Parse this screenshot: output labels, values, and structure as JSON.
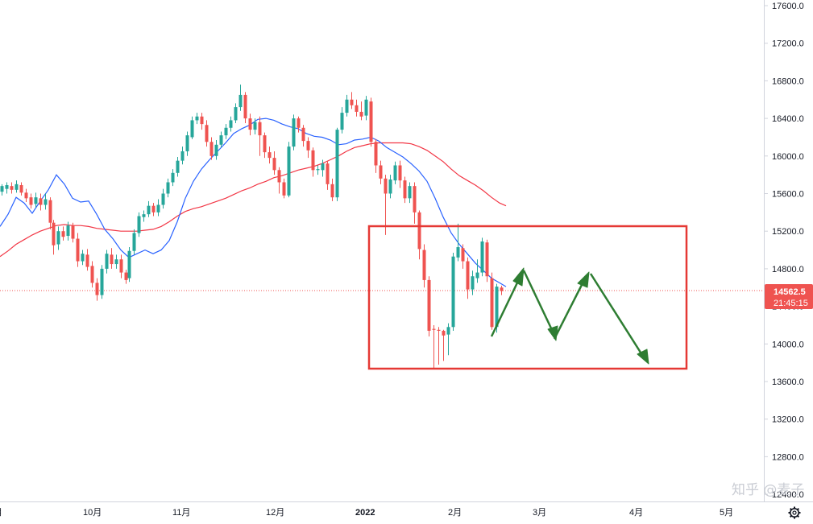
{
  "chart_data": {
    "type": "candlestick",
    "y_axis": {
      "position": "right",
      "range": [
        12240,
        17640
      ],
      "ticks": [
        "17600.0",
        "17200.0",
        "16800.0",
        "16400.0",
        "16000.0",
        "15600.0",
        "15200.0",
        "14800.0",
        "14400.0",
        "14000.0",
        "13600.0",
        "13200.0",
        "12800.0",
        "12400.0"
      ]
    },
    "x_axis": {
      "ticks": [
        {
          "label": "月",
          "bold": false
        },
        {
          "label": "10月",
          "bold": false
        },
        {
          "label": "11月",
          "bold": false
        },
        {
          "label": "12月",
          "bold": false
        },
        {
          "label": "2022",
          "bold": true
        },
        {
          "label": "2月",
          "bold": false
        },
        {
          "label": "3月",
          "bold": false
        },
        {
          "label": "4月",
          "bold": false
        },
        {
          "label": "5月",
          "bold": false
        }
      ]
    },
    "last_price": {
      "value": 14562.5,
      "label": "14562.5",
      "countdown": "21:45:15"
    },
    "colors": {
      "up": "#26a69a",
      "down": "#ef5350",
      "ma_fast": "#2962ff",
      "ma_slow": "#f23645",
      "box": "#e53935",
      "arrow": "#2e7d32"
    },
    "ma_fast": [
      [
        0,
        15250
      ],
      [
        10,
        15380
      ],
      [
        20,
        15560
      ],
      [
        30,
        15500
      ],
      [
        40,
        15390
      ],
      [
        50,
        15520
      ],
      [
        60,
        15640
      ],
      [
        70,
        15800
      ],
      [
        80,
        15700
      ],
      [
        90,
        15550
      ],
      [
        100,
        15510
      ],
      [
        110,
        15520
      ],
      [
        120,
        15380
      ],
      [
        130,
        15220
      ],
      [
        140,
        15120
      ],
      [
        150,
        15000
      ],
      [
        160,
        14920
      ],
      [
        170,
        14960
      ],
      [
        180,
        15000
      ],
      [
        190,
        14960
      ],
      [
        200,
        15000
      ],
      [
        210,
        15100
      ],
      [
        220,
        15300
      ],
      [
        230,
        15550
      ],
      [
        240,
        15730
      ],
      [
        250,
        15860
      ],
      [
        260,
        15960
      ],
      [
        270,
        16050
      ],
      [
        280,
        16140
      ],
      [
        290,
        16240
      ],
      [
        300,
        16290
      ],
      [
        310,
        16330
      ],
      [
        320,
        16390
      ],
      [
        330,
        16400
      ],
      [
        340,
        16380
      ],
      [
        350,
        16340
      ],
      [
        360,
        16310
      ],
      [
        370,
        16290
      ],
      [
        380,
        16240
      ],
      [
        390,
        16210
      ],
      [
        400,
        16200
      ],
      [
        410,
        16170
      ],
      [
        420,
        16120
      ],
      [
        430,
        16130
      ],
      [
        440,
        16170
      ],
      [
        450,
        16180
      ],
      [
        460,
        16200
      ],
      [
        470,
        16160
      ],
      [
        480,
        16090
      ],
      [
        490,
        16040
      ],
      [
        500,
        15990
      ],
      [
        510,
        15920
      ],
      [
        520,
        15840
      ],
      [
        530,
        15730
      ],
      [
        540,
        15550
      ],
      [
        550,
        15350
      ],
      [
        560,
        15180
      ],
      [
        570,
        15060
      ],
      [
        580,
        14960
      ],
      [
        590,
        14860
      ],
      [
        600,
        14780
      ],
      [
        610,
        14700
      ],
      [
        620,
        14650
      ],
      [
        628,
        14610
      ]
    ],
    "ma_slow": [
      [
        0,
        14930
      ],
      [
        10,
        14990
      ],
      [
        20,
        15060
      ],
      [
        30,
        15110
      ],
      [
        40,
        15160
      ],
      [
        50,
        15200
      ],
      [
        60,
        15230
      ],
      [
        70,
        15260
      ],
      [
        80,
        15270
      ],
      [
        90,
        15260
      ],
      [
        100,
        15260
      ],
      [
        110,
        15250
      ],
      [
        120,
        15230
      ],
      [
        130,
        15220
      ],
      [
        140,
        15210
      ],
      [
        150,
        15200
      ],
      [
        160,
        15200
      ],
      [
        170,
        15200
      ],
      [
        180,
        15210
      ],
      [
        190,
        15220
      ],
      [
        200,
        15250
      ],
      [
        210,
        15300
      ],
      [
        220,
        15360
      ],
      [
        230,
        15410
      ],
      [
        240,
        15440
      ],
      [
        250,
        15460
      ],
      [
        260,
        15490
      ],
      [
        270,
        15520
      ],
      [
        280,
        15550
      ],
      [
        290,
        15590
      ],
      [
        300,
        15630
      ],
      [
        310,
        15660
      ],
      [
        320,
        15700
      ],
      [
        330,
        15730
      ],
      [
        340,
        15770
      ],
      [
        350,
        15790
      ],
      [
        360,
        15820
      ],
      [
        370,
        15850
      ],
      [
        380,
        15870
      ],
      [
        390,
        15890
      ],
      [
        400,
        15920
      ],
      [
        410,
        15960
      ],
      [
        420,
        16000
      ],
      [
        430,
        16050
      ],
      [
        440,
        16090
      ],
      [
        450,
        16110
      ],
      [
        460,
        16130
      ],
      [
        470,
        16140
      ],
      [
        480,
        16140
      ],
      [
        490,
        16140
      ],
      [
        500,
        16140
      ],
      [
        510,
        16130
      ],
      [
        520,
        16100
      ],
      [
        530,
        16060
      ],
      [
        540,
        16000
      ],
      [
        550,
        15940
      ],
      [
        560,
        15860
      ],
      [
        570,
        15790
      ],
      [
        580,
        15740
      ],
      [
        590,
        15690
      ],
      [
        600,
        15630
      ],
      [
        610,
        15560
      ],
      [
        620,
        15500
      ],
      [
        628,
        15470
      ]
    ],
    "candles": [
      [
        2,
        15620,
        15680,
        15580,
        15700
      ],
      [
        8,
        15650,
        15690,
        15600,
        15720
      ],
      [
        14,
        15680,
        15640,
        15600,
        15720
      ],
      [
        20,
        15640,
        15700,
        15610,
        15740
      ],
      [
        26,
        15690,
        15610,
        15580,
        15720
      ],
      [
        32,
        15610,
        15550,
        15510,
        15650
      ],
      [
        38,
        15560,
        15480,
        15440,
        15600
      ],
      [
        44,
        15490,
        15560,
        15450,
        15610
      ],
      [
        50,
        15550,
        15480,
        15420,
        15600
      ],
      [
        56,
        15480,
        15540,
        15430,
        15600
      ],
      [
        62,
        15530,
        15290,
        15220,
        15560
      ],
      [
        66,
        15290,
        15050,
        14950,
        15320
      ],
      [
        72,
        15060,
        15200,
        15000,
        15250
      ],
      [
        78,
        15200,
        15140,
        15100,
        15250
      ],
      [
        84,
        15150,
        15260,
        15100,
        15300
      ],
      [
        90,
        15260,
        15120,
        15080,
        15290
      ],
      [
        96,
        15120,
        14880,
        14820,
        15180
      ],
      [
        102,
        14880,
        14960,
        14840,
        15000
      ],
      [
        108,
        14950,
        14820,
        14780,
        15010
      ],
      [
        114,
        14830,
        14650,
        14600,
        14880
      ],
      [
        120,
        14650,
        14520,
        14460,
        14700
      ],
      [
        126,
        14520,
        14800,
        14480,
        14840
      ],
      [
        132,
        14800,
        14960,
        14750,
        15000
      ],
      [
        138,
        14950,
        14850,
        14800,
        15020
      ],
      [
        144,
        14850,
        14900,
        14800,
        14950
      ],
      [
        150,
        14900,
        14760,
        14700,
        14950
      ],
      [
        156,
        14760,
        14680,
        14640,
        14790
      ],
      [
        160,
        14700,
        14990,
        14660,
        15030
      ],
      [
        166,
        14990,
        15180,
        14950,
        15220
      ],
      [
        172,
        15180,
        15360,
        15140,
        15400
      ],
      [
        178,
        15350,
        15380,
        15300,
        15420
      ],
      [
        184,
        15380,
        15470,
        15350,
        15520
      ],
      [
        190,
        15470,
        15400,
        15360,
        15500
      ],
      [
        196,
        15400,
        15480,
        15360,
        15540
      ],
      [
        202,
        15480,
        15600,
        15440,
        15650
      ],
      [
        208,
        15600,
        15720,
        15560,
        15760
      ],
      [
        214,
        15720,
        15820,
        15680,
        15860
      ],
      [
        220,
        15820,
        15950,
        15780,
        15990
      ],
      [
        226,
        15950,
        16050,
        15910,
        16100
      ],
      [
        232,
        16050,
        16220,
        16000,
        16260
      ],
      [
        238,
        16200,
        16380,
        16180,
        16420
      ],
      [
        244,
        16380,
        16420,
        16340,
        16460
      ],
      [
        250,
        16420,
        16340,
        16280,
        16460
      ],
      [
        256,
        16330,
        16150,
        16100,
        16380
      ],
      [
        262,
        16150,
        16000,
        15960,
        16200
      ],
      [
        268,
        16000,
        16120,
        15960,
        16170
      ],
      [
        274,
        16120,
        16220,
        16090,
        16260
      ],
      [
        280,
        16220,
        16300,
        16180,
        16340
      ],
      [
        286,
        16300,
        16380,
        16260,
        16420
      ],
      [
        292,
        16380,
        16520,
        16350,
        16560
      ],
      [
        298,
        16520,
        16650,
        16480,
        16760
      ],
      [
        304,
        16650,
        16400,
        16350,
        16680
      ],
      [
        310,
        16400,
        16280,
        16220,
        16450
      ],
      [
        316,
        16280,
        16360,
        16230,
        16400
      ],
      [
        322,
        16360,
        16220,
        16000,
        16420
      ],
      [
        328,
        16220,
        16040,
        15980,
        16250
      ],
      [
        334,
        16040,
        15980,
        15920,
        16100
      ],
      [
        340,
        15980,
        15850,
        15800,
        16050
      ],
      [
        346,
        15850,
        15720,
        15600,
        15880
      ],
      [
        352,
        15720,
        15580,
        15550,
        15760
      ],
      [
        358,
        15580,
        16100,
        15560,
        16150
      ],
      [
        364,
        16100,
        16400,
        16060,
        16440
      ],
      [
        370,
        16400,
        16300,
        16250,
        16420
      ],
      [
        376,
        16300,
        16160,
        16100,
        16330
      ],
      [
        382,
        16160,
        16060,
        15980,
        16200
      ],
      [
        388,
        16060,
        15850,
        15780,
        16090
      ],
      [
        394,
        15850,
        15860,
        15800,
        15900
      ],
      [
        400,
        15850,
        15920,
        15780,
        15960
      ],
      [
        406,
        15920,
        15700,
        15640,
        15950
      ],
      [
        412,
        15700,
        15560,
        15520,
        15760
      ],
      [
        418,
        15560,
        16280,
        15520,
        16300
      ],
      [
        424,
        16280,
        16460,
        16240,
        16520
      ],
      [
        430,
        16460,
        16600,
        16420,
        16650
      ],
      [
        436,
        16600,
        16540,
        16500,
        16680
      ],
      [
        442,
        16540,
        16470,
        16420,
        16600
      ],
      [
        448,
        16470,
        16420,
        16380,
        16580
      ],
      [
        454,
        16430,
        16600,
        16380,
        16640
      ],
      [
        460,
        16580,
        16150,
        16100,
        16620
      ],
      [
        466,
        16150,
        15900,
        15820,
        16180
      ],
      [
        472,
        15900,
        15760,
        15700,
        15950
      ],
      [
        478,
        15760,
        15600,
        15160,
        15800
      ],
      [
        484,
        15600,
        15750,
        15550,
        15800
      ],
      [
        490,
        15740,
        15900,
        15700,
        15940
      ],
      [
        496,
        15900,
        15740,
        15660,
        15950
      ],
      [
        502,
        15740,
        15550,
        15500,
        15780
      ],
      [
        508,
        15550,
        15680,
        15500,
        15720
      ],
      [
        514,
        15680,
        15400,
        15280,
        15720
      ],
      [
        520,
        15400,
        15010,
        14900,
        15420
      ],
      [
        526,
        15000,
        14680,
        14600,
        15060
      ],
      [
        532,
        14680,
        14140,
        14080,
        14720
      ],
      [
        538,
        14160,
        14150,
        13730,
        14200
      ],
      [
        544,
        14150,
        14140,
        13780,
        14180
      ],
      [
        550,
        14140,
        14090,
        13820,
        14150
      ],
      [
        556,
        14100,
        14180,
        13880,
        14220
      ],
      [
        562,
        14180,
        14930,
        14140,
        14970
      ],
      [
        568,
        14920,
        15030,
        14880,
        15280
      ],
      [
        574,
        15020,
        14880,
        14800,
        15060
      ],
      [
        580,
        14880,
        14580,
        14480,
        14920
      ],
      [
        586,
        14580,
        14720,
        14520,
        14780
      ],
      [
        592,
        14700,
        14760,
        14650,
        14900
      ],
      [
        598,
        14760,
        15090,
        14720,
        15130
      ],
      [
        604,
        15080,
        14720,
        14660,
        15110
      ],
      [
        610,
        14700,
        14180,
        14150,
        14760
      ],
      [
        616,
        14180,
        14610,
        14120,
        14640
      ],
      [
        622,
        14600,
        14562.5,
        14520,
        14620
      ]
    ]
  },
  "watermark": "知乎 @麦子"
}
